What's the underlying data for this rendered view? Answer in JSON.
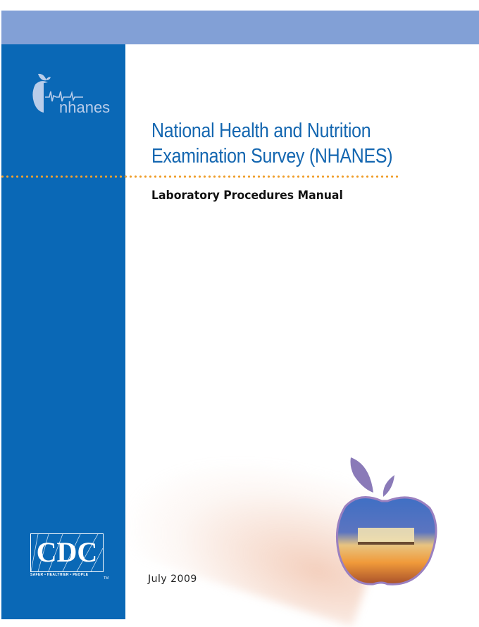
{
  "logos": {
    "nhanes": "nhanes",
    "cdc": "CDC",
    "cdc_tagline": "SAFER • HEALTHIER • PEOPLE",
    "cdc_tm": "TM"
  },
  "title": {
    "line1": "National Health and Nutrition",
    "line2": "Examination Survey (NHANES)"
  },
  "subtitle": "Laboratory Procedures Manual",
  "date": "July 2009",
  "colors": {
    "top_band": "#82a0d6",
    "sidebar": "#0a68b6",
    "title": "#1366b0",
    "dots": "#f0a030"
  }
}
